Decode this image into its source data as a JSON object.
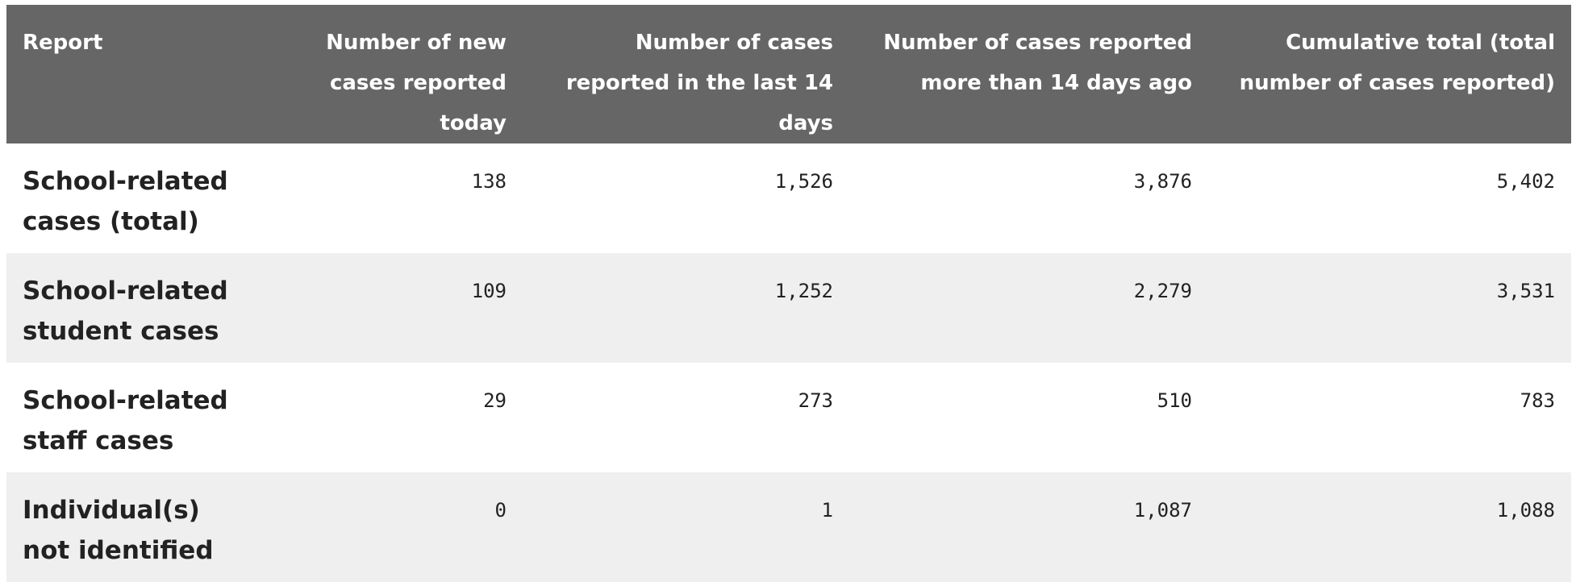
{
  "table": {
    "headers": [
      "Report",
      "Number of new cases reported today",
      "Number of cases reported in the last 14 days",
      "Number of cases reported more than 14 days ago",
      "Cumulative total (total number of cases reported)"
    ],
    "rows": [
      {
        "label": "School-related cases (total)",
        "values": [
          "138",
          "1,526",
          "3,876",
          "5,402"
        ]
      },
      {
        "label": "School-related student cases",
        "values": [
          "109",
          "1,252",
          "2,279",
          "3,531"
        ]
      },
      {
        "label": "School-related staff cases",
        "values": [
          "29",
          "273",
          "510",
          "783"
        ]
      },
      {
        "label": "Individual(s) not identified",
        "values": [
          "0",
          "1",
          "1,087",
          "1,088"
        ]
      }
    ]
  },
  "colors": {
    "header_bg": "#666666",
    "header_text": "#ffffff",
    "alt_row_bg": "#efefef",
    "body_text": "#222222"
  }
}
